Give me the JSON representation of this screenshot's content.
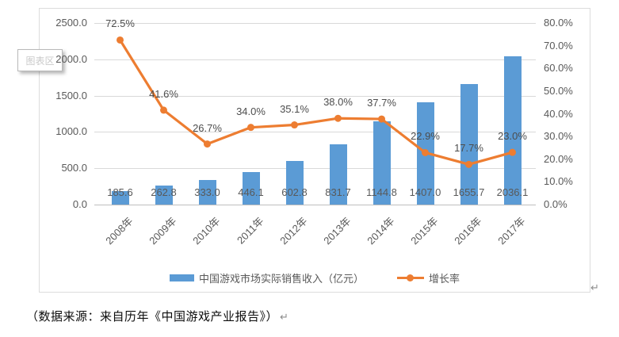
{
  "chart_data": {
    "type": "bar",
    "subtype": "bar-line-combo",
    "categories": [
      "2008年",
      "2009年",
      "2010年",
      "2011年",
      "2012年",
      "2013年",
      "2014年",
      "2015年",
      "2016年",
      "2017年"
    ],
    "series": [
      {
        "name": "中国游戏市场实际销售收入（亿元）",
        "type": "bar",
        "axis": "left",
        "color": "#5b9bd5",
        "values": [
          185.6,
          262.8,
          333.0,
          446.1,
          602.8,
          831.7,
          1144.8,
          1407.0,
          1655.7,
          2036.1
        ],
        "labels": [
          "185.6",
          "262.8",
          "333.0",
          "446.1",
          "602.8",
          "831.7",
          "1144.8",
          "1407.0",
          "1655.7",
          "2036.1"
        ]
      },
      {
        "name": "增长率",
        "type": "line",
        "axis": "right",
        "color": "#ed7d31",
        "values": [
          72.5,
          41.6,
          26.7,
          34.0,
          35.1,
          38.0,
          37.7,
          22.9,
          17.7,
          23.0
        ],
        "labels": [
          "72.5%",
          "41.6%",
          "26.7%",
          "34.0%",
          "35.1%",
          "38.0%",
          "37.7%",
          "22.9%",
          "17.7%",
          "23.0%"
        ]
      }
    ],
    "left_axis": {
      "min": 0,
      "max": 2500,
      "ticks": [
        "2500.0",
        "2000.0",
        "1500.0",
        "1000.0",
        "500.0",
        "0.0"
      ]
    },
    "right_axis": {
      "min": 0,
      "max": 80,
      "ticks": [
        "80.0%",
        "70.0%",
        "60.0%",
        "50.0%",
        "40.0%",
        "30.0%",
        "20.0%",
        "10.0%",
        "0.0%"
      ]
    },
    "grid": true,
    "legend_position": "bottom",
    "title": ""
  },
  "tooltip": {
    "label": "图表区"
  },
  "caption": {
    "text": "（数据来源：来自历年《中国游戏产业报告》）",
    "return_mark": "↵"
  },
  "marks": {
    "chart_return": "↵"
  },
  "colors": {
    "bar": "#5b9bd5",
    "line": "#ed7d31",
    "gridline": "#d9d9d9",
    "axis_text": "#595959"
  }
}
